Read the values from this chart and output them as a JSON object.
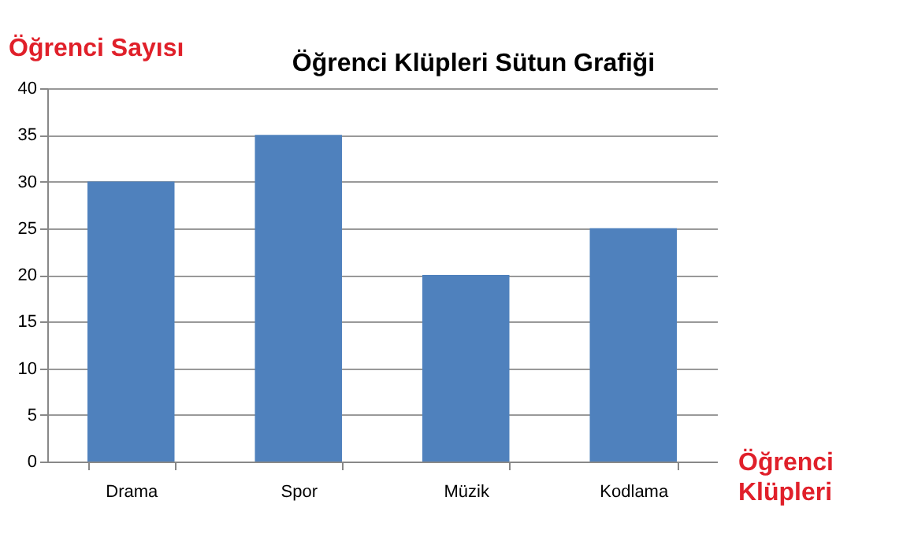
{
  "chart_data": {
    "type": "bar",
    "title": "Öğrenci Klüpleri Sütun Grafiği",
    "ylabel": "Öğrenci Sayısı",
    "xlabel": "Öğrenci Klüpleri",
    "categories": [
      "Drama",
      "Spor",
      "Müzik",
      "Kodlama"
    ],
    "values": [
      30,
      35,
      20,
      25
    ],
    "color": "#4f81bd",
    "ylim": [
      0,
      40
    ],
    "yticks": [
      0,
      5,
      10,
      15,
      20,
      25,
      30,
      35,
      40
    ],
    "grid": "y"
  }
}
